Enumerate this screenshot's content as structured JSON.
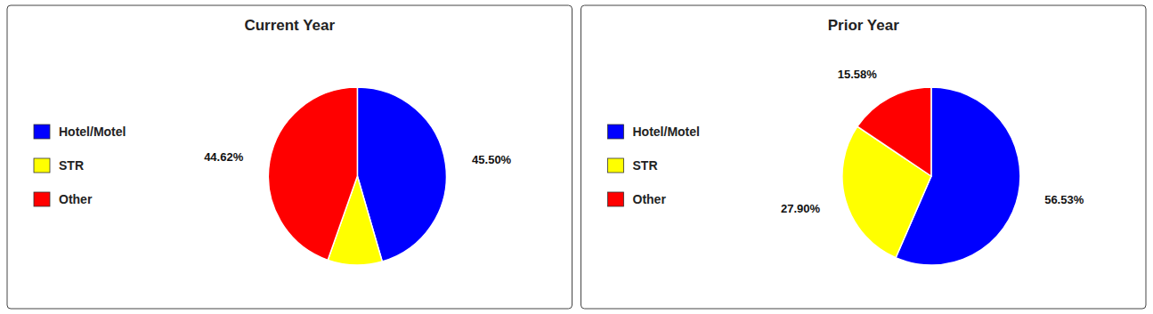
{
  "chart_data": [
    {
      "type": "pie",
      "title": "Current Year",
      "categories": [
        "Hotel/Motel",
        "STR",
        "Other"
      ],
      "values": [
        45.5,
        9.88,
        44.62
      ],
      "value_labels": [
        "45.50%",
        null,
        "44.62%"
      ],
      "colors": [
        "#0000FF",
        "#FFFF00",
        "#FF0000"
      ],
      "data_labels": true,
      "legend": "left"
    },
    {
      "type": "pie",
      "title": "Prior Year",
      "categories": [
        "Hotel/Motel",
        "STR",
        "Other"
      ],
      "values": [
        56.53,
        27.9,
        15.58
      ],
      "value_labels": [
        "56.53%",
        "27.90%",
        "15.58%"
      ],
      "colors": [
        "#0000FF",
        "#FFFF00",
        "#FF0000"
      ],
      "data_labels": true,
      "legend": "left"
    }
  ]
}
